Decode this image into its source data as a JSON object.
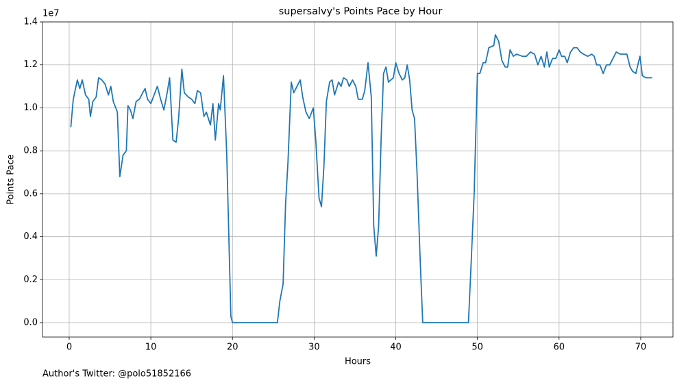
{
  "chart_data": {
    "type": "line",
    "title": "supersalvy's Points Pace by Hour",
    "x_label": "Hours",
    "y_label": "Points Pace",
    "y_offset_label": "1e7",
    "footer": "Author's Twitter: @polo51852166",
    "color": "#1f77b4",
    "grid": true,
    "xlim": [
      -3.27,
      73.95
    ],
    "ylim": [
      -0.067,
      1.4
    ],
    "xticks": [
      0,
      10,
      20,
      30,
      40,
      50,
      60,
      70
    ],
    "yticks": [
      {
        "value": 0,
        "label": "0.0"
      },
      {
        "value": 0.2,
        "label": "0.2"
      },
      {
        "value": 0.4,
        "label": "0.4"
      },
      {
        "value": 0.6,
        "label": "0.6"
      },
      {
        "value": 0.8,
        "label": "0.8"
      },
      {
        "value": 1,
        "label": "1.0"
      },
      {
        "value": 1.2,
        "label": "1.2"
      },
      {
        "value": 1.4,
        "label": "1.4"
      }
    ],
    "x": [
      0.2,
      0.5,
      1.0,
      1.3,
      1.6,
      2.0,
      2.4,
      2.6,
      2.9,
      3.3,
      3.6,
      4.0,
      4.4,
      4.8,
      5.1,
      5.4,
      5.9,
      6.2,
      6.6,
      7.0,
      7.2,
      7.5,
      7.8,
      8.2,
      8.6,
      9.0,
      9.3,
      9.6,
      10.0,
      10.4,
      10.8,
      11.2,
      11.6,
      12.0,
      12.3,
      12.7,
      13.1,
      13.4,
      13.8,
      14.1,
      14.6,
      15.0,
      15.4,
      15.7,
      16.1,
      16.5,
      16.8,
      17.3,
      17.6,
      17.9,
      18.3,
      18.5,
      18.9,
      19.3,
      19.8,
      20.0,
      25.5,
      25.8,
      26.2,
      26.5,
      26.8,
      27.2,
      27.5,
      27.9,
      28.3,
      28.6,
      29.0,
      29.4,
      29.9,
      30.2,
      30.6,
      30.9,
      31.2,
      31.5,
      31.9,
      32.2,
      32.5,
      33.0,
      33.3,
      33.6,
      34.0,
      34.3,
      34.7,
      35.1,
      35.4,
      35.9,
      36.2,
      36.6,
      37.0,
      37.3,
      37.6,
      37.9,
      38.2,
      38.5,
      38.8,
      39.1,
      39.7,
      40.0,
      40.4,
      40.8,
      41.1,
      41.4,
      41.7,
      42.0,
      42.3,
      42.6,
      43.0,
      43.3,
      48.9,
      49.2,
      49.6,
      50.0,
      50.3,
      50.7,
      51.0,
      51.4,
      52.0,
      52.2,
      52.6,
      53.0,
      53.4,
      53.7,
      54.0,
      54.4,
      54.8,
      55.5,
      56.0,
      56.5,
      57.0,
      57.4,
      57.8,
      58.2,
      58.5,
      58.8,
      59.2,
      59.6,
      60.0,
      60.3,
      60.7,
      61.0,
      61.4,
      61.8,
      62.2,
      62.6,
      63.0,
      63.5,
      64.0,
      64.3,
      64.6,
      65.0,
      65.4,
      65.8,
      66.2,
      66.6,
      67.0,
      67.5,
      68.0,
      68.3,
      68.7,
      69.0,
      69.4,
      69.9,
      70.2,
      70.6,
      71.0,
      71.4
    ],
    "values": [
      0.91,
      1.04,
      1.13,
      1.09,
      1.13,
      1.06,
      1.04,
      0.96,
      1.03,
      1.05,
      1.14,
      1.13,
      1.11,
      1.06,
      1.1,
      1.03,
      0.98,
      0.68,
      0.78,
      0.8,
      1.01,
      0.99,
      0.95,
      1.03,
      1.04,
      1.07,
      1.09,
      1.04,
      1.02,
      1.06,
      1.1,
      1.04,
      0.99,
      1.07,
      1.14,
      0.85,
      0.84,
      0.95,
      1.18,
      1.07,
      1.05,
      1.04,
      1.02,
      1.08,
      1.07,
      0.96,
      0.98,
      0.92,
      1.02,
      0.85,
      1.02,
      0.99,
      1.15,
      0.78,
      0.03,
      0,
      0,
      0.1,
      0.18,
      0.55,
      0.75,
      1.12,
      1.07,
      1.1,
      1.13,
      1.05,
      0.98,
      0.95,
      1.0,
      0.85,
      0.58,
      0.54,
      0.73,
      1.03,
      1.12,
      1.13,
      1.06,
      1.12,
      1.1,
      1.14,
      1.13,
      1.1,
      1.13,
      1.1,
      1.04,
      1.04,
      1.08,
      1.21,
      1.05,
      0.45,
      0.31,
      0.45,
      0.85,
      1.16,
      1.19,
      1.12,
      1.14,
      1.21,
      1.16,
      1.13,
      1.14,
      1.2,
      1.13,
      0.99,
      0.95,
      0.7,
      0.28,
      0,
      0,
      0.25,
      0.6,
      1.16,
      1.16,
      1.21,
      1.21,
      1.28,
      1.29,
      1.34,
      1.31,
      1.22,
      1.19,
      1.19,
      1.27,
      1.24,
      1.25,
      1.24,
      1.24,
      1.26,
      1.25,
      1.2,
      1.24,
      1.19,
      1.26,
      1.19,
      1.23,
      1.23,
      1.27,
      1.24,
      1.24,
      1.21,
      1.26,
      1.28,
      1.28,
      1.26,
      1.25,
      1.24,
      1.25,
      1.24,
      1.2,
      1.2,
      1.16,
      1.2,
      1.2,
      1.23,
      1.26,
      1.25,
      1.25,
      1.25,
      1.19,
      1.17,
      1.16,
      1.24,
      1.15,
      1.14,
      1.14,
      1.14
    ]
  }
}
